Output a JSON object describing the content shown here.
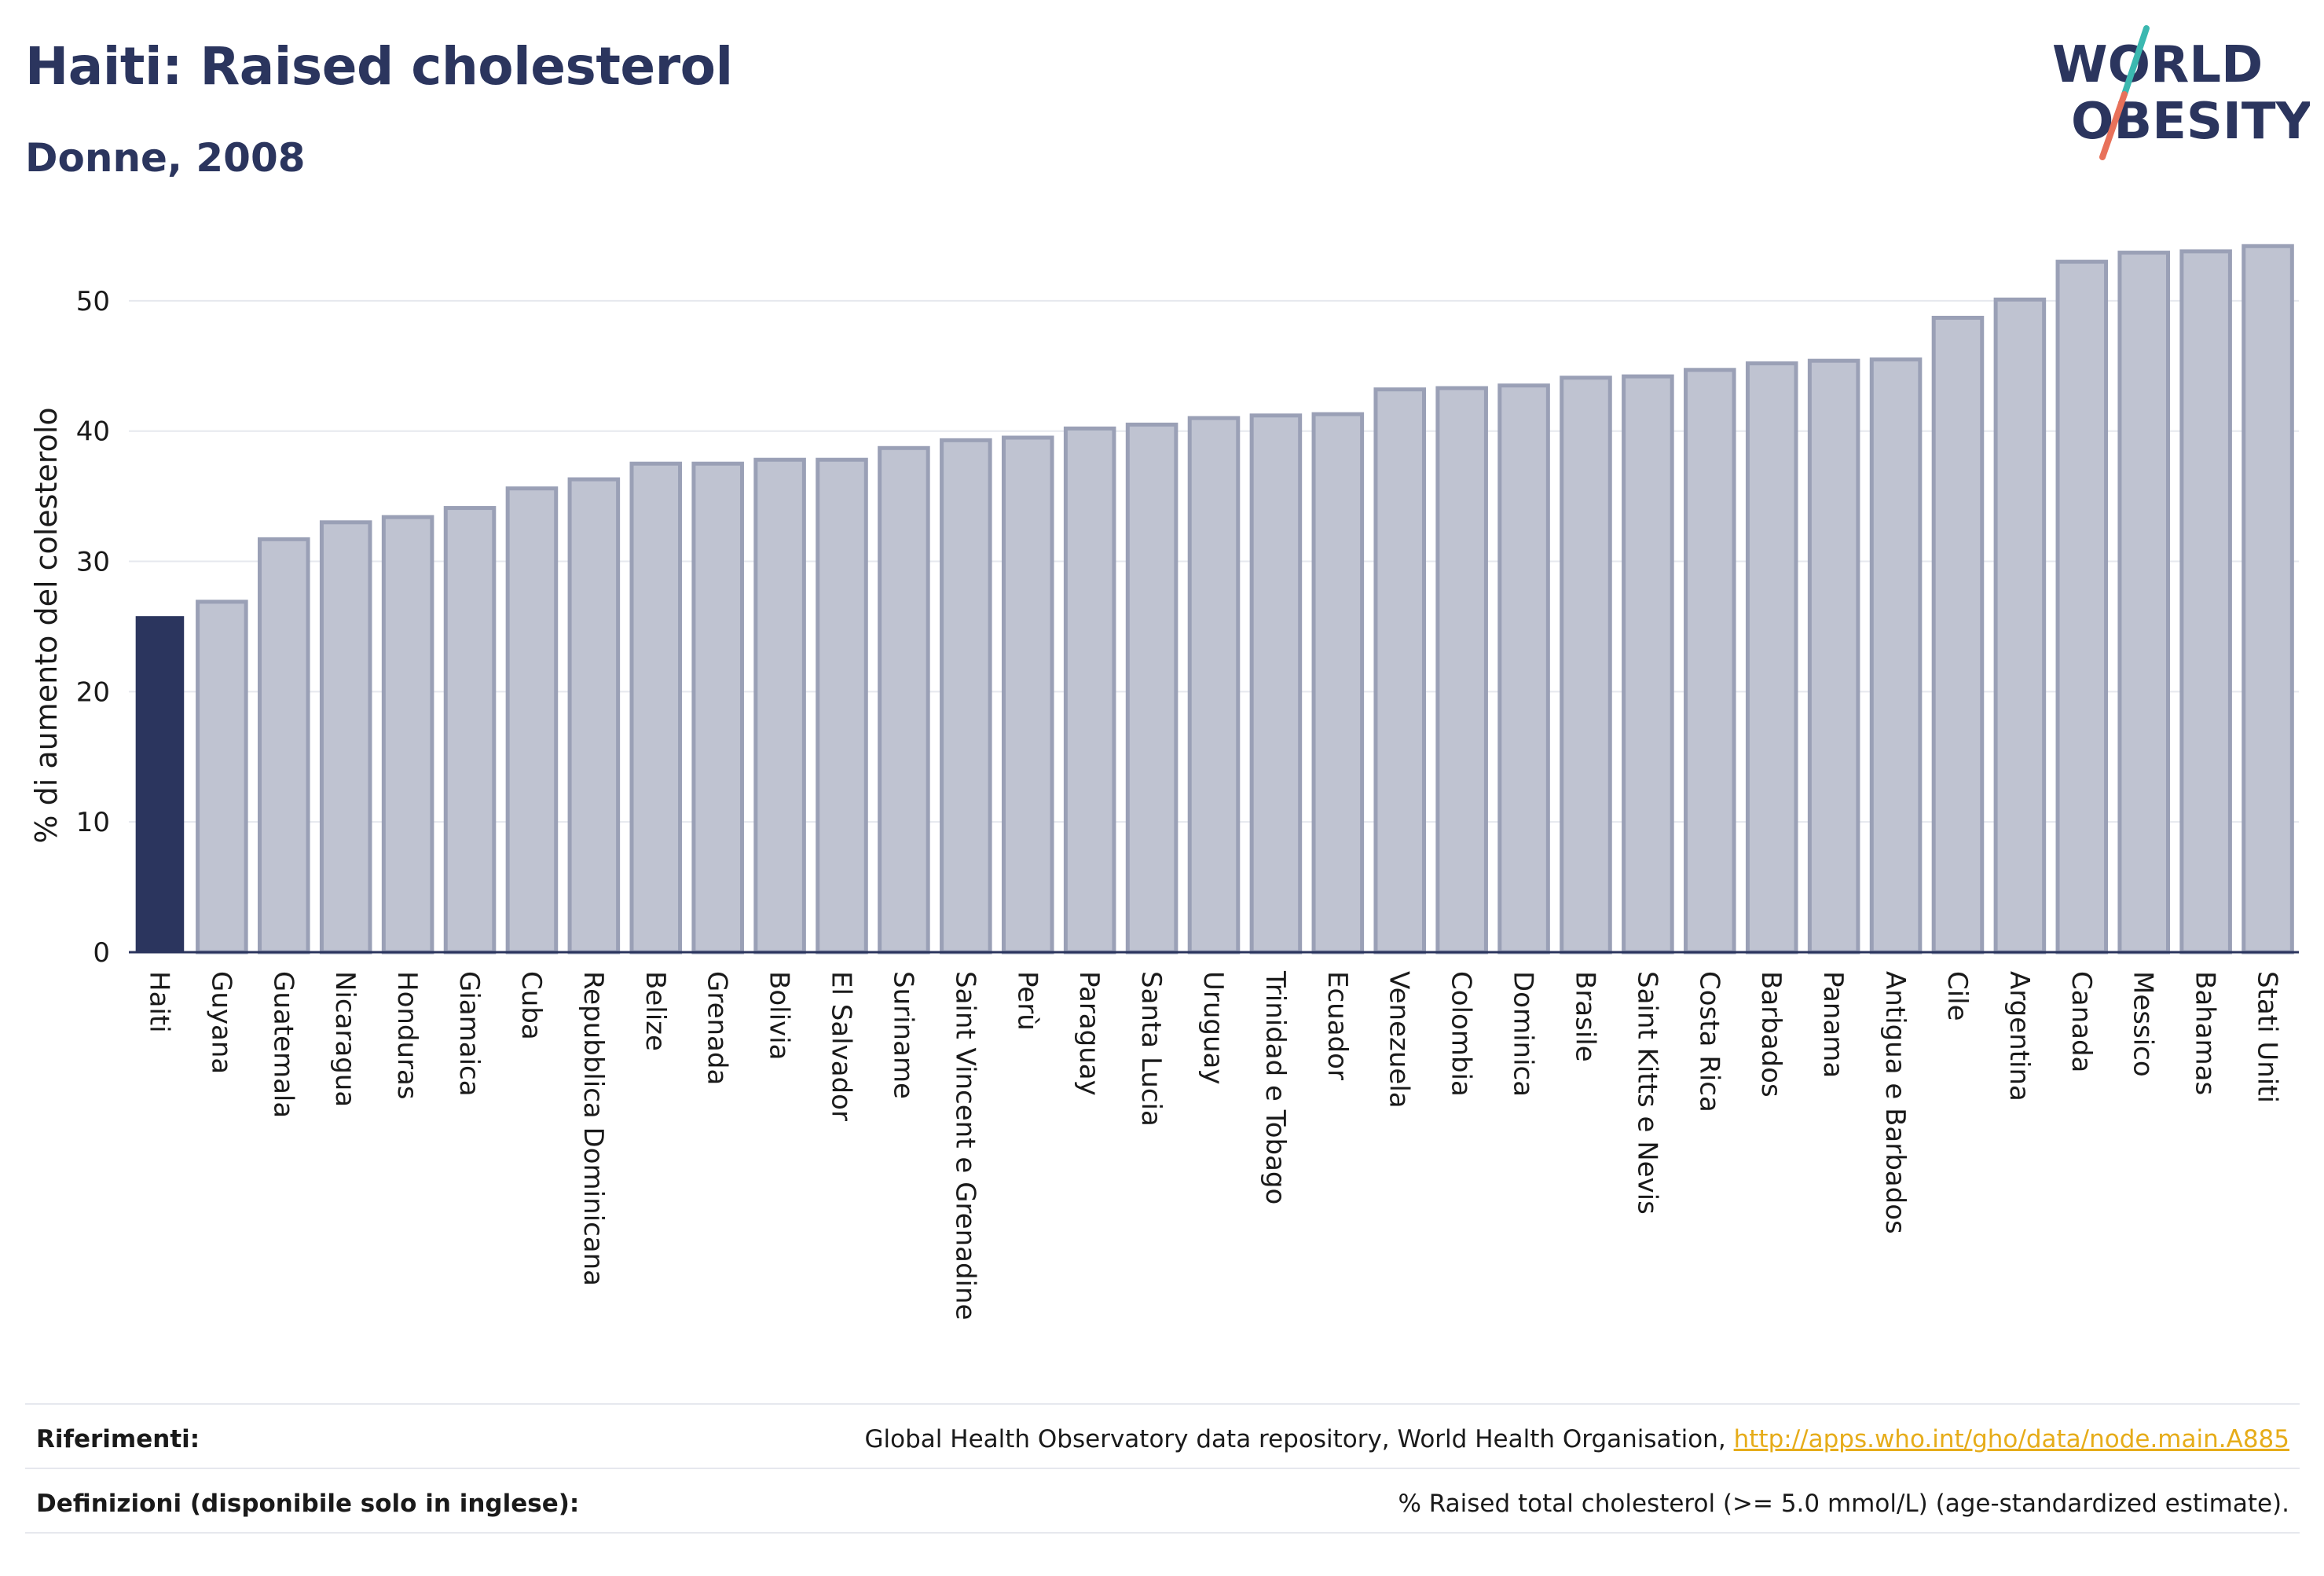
{
  "header": {
    "title": "Haiti: Raised cholesterol",
    "subtitle": "Donne, 2008"
  },
  "logo": {
    "line1": "WORLD",
    "line2": "OBESITY",
    "colors": {
      "text": "#2b355e",
      "slash_teal": "#3bb8b0",
      "slash_coral": "#e8715a"
    }
  },
  "colors": {
    "highlight": "#2b355e",
    "bar_fill": "#bfc3d1",
    "bar_stroke": "#9aa0b6",
    "grid": "#e6e8ee",
    "axis": "#2b355e"
  },
  "chart_data": {
    "type": "bar",
    "ylabel": "% di aumento del colesterolo",
    "ylim": [
      0,
      55
    ],
    "yticks": [
      0,
      10,
      20,
      30,
      40,
      50
    ],
    "grid": true,
    "highlight": "Haiti",
    "categories": [
      "Haiti",
      "Guyana",
      "Guatemala",
      "Nicaragua",
      "Honduras",
      "Giamaica",
      "Cuba",
      "Repubblica Dominicana",
      "Belize",
      "Grenada",
      "Bolivia",
      "El Salvador",
      "Suriname",
      "Saint Vincent e Grenadine",
      "Perù",
      "Paraguay",
      "Santa Lucia",
      "Uruguay",
      "Trinidad e Tobago",
      "Ecuador",
      "Venezuela",
      "Colombia",
      "Dominica",
      "Brasile",
      "Saint Kitts e Nevis",
      "Costa Rica",
      "Barbados",
      "Panama",
      "Antigua e Barbados",
      "Cile",
      "Argentina",
      "Canada",
      "Messico",
      "Bahamas",
      "Stati Uniti"
    ],
    "values": [
      25.8,
      26.9,
      31.7,
      33.0,
      33.4,
      34.1,
      35.6,
      36.3,
      37.5,
      37.5,
      37.8,
      37.8,
      38.7,
      39.3,
      39.5,
      40.2,
      40.5,
      41.0,
      41.2,
      41.3,
      43.2,
      43.3,
      43.5,
      44.1,
      44.2,
      44.7,
      45.2,
      45.4,
      45.5,
      48.7,
      50.1,
      53.0,
      53.7,
      53.8,
      54.2
    ]
  },
  "footer": {
    "references_label": "Riferimenti:",
    "references_text": "Global Health Observatory data repository, World Health Organisation, ",
    "references_link": "http://apps.who.int/gho/data/node.main.A885",
    "definitions_label": "Definizioni (disponibile solo in inglese):",
    "definitions_text": "% Raised total cholesterol (>= 5.0 mmol/L) (age-standardized estimate)."
  }
}
